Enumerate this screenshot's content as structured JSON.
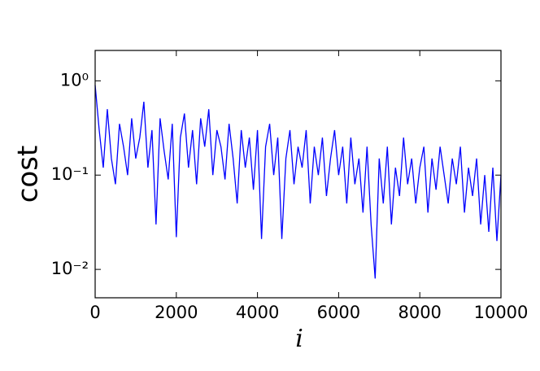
{
  "chart_data": {
    "type": "line",
    "xlabel": "i",
    "ylabel": "cost",
    "log_y": true,
    "xlim": [
      0,
      10000
    ],
    "xticks": [
      0,
      2000,
      4000,
      6000,
      8000,
      10000
    ],
    "ylim": [
      0.005,
      2.1
    ],
    "yticks": [
      {
        "value": 0.01,
        "label": "10⁻²"
      },
      {
        "value": 0.1,
        "label": "10⁻¹"
      },
      {
        "value": 1,
        "label": "10⁰"
      }
    ],
    "series": [
      {
        "color": "#0000ff",
        "x": [
          0,
          100,
          200,
          300,
          400,
          500,
          600,
          700,
          800,
          900,
          1000,
          1100,
          1200,
          1300,
          1400,
          1500,
          1600,
          1700,
          1800,
          1900,
          2000,
          2100,
          2200,
          2300,
          2400,
          2500,
          2600,
          2700,
          2800,
          2900,
          3000,
          3100,
          3200,
          3300,
          3400,
          3500,
          3600,
          3700,
          3800,
          3900,
          4000,
          4100,
          4200,
          4300,
          4400,
          4500,
          4600,
          4700,
          4800,
          4900,
          5000,
          5100,
          5200,
          5300,
          5400,
          5500,
          5600,
          5700,
          5800,
          5900,
          6000,
          6100,
          6200,
          6300,
          6400,
          6500,
          6600,
          6700,
          6800,
          6900,
          7000,
          7100,
          7200,
          7300,
          7400,
          7500,
          7600,
          7700,
          7800,
          7900,
          8000,
          8100,
          8200,
          8300,
          8400,
          8500,
          8600,
          8700,
          8800,
          8900,
          9000,
          9100,
          9200,
          9300,
          9400,
          9500,
          9600,
          9700,
          9800,
          9900,
          10000
        ],
        "values": [
          0.9,
          0.3,
          0.12,
          0.5,
          0.15,
          0.08,
          0.35,
          0.2,
          0.1,
          0.4,
          0.15,
          0.25,
          0.6,
          0.12,
          0.3,
          0.03,
          0.4,
          0.18,
          0.09,
          0.35,
          0.022,
          0.25,
          0.45,
          0.12,
          0.3,
          0.08,
          0.4,
          0.2,
          0.5,
          0.1,
          0.3,
          0.2,
          0.09,
          0.35,
          0.15,
          0.05,
          0.3,
          0.12,
          0.25,
          0.07,
          0.3,
          0.021,
          0.2,
          0.35,
          0.1,
          0.25,
          0.021,
          0.15,
          0.3,
          0.08,
          0.2,
          0.12,
          0.3,
          0.05,
          0.2,
          0.1,
          0.25,
          0.06,
          0.15,
          0.3,
          0.1,
          0.2,
          0.05,
          0.25,
          0.08,
          0.15,
          0.04,
          0.2,
          0.03,
          0.008,
          0.15,
          0.05,
          0.2,
          0.03,
          0.12,
          0.06,
          0.25,
          0.08,
          0.15,
          0.05,
          0.12,
          0.2,
          0.04,
          0.15,
          0.07,
          0.2,
          0.1,
          0.05,
          0.15,
          0.08,
          0.2,
          0.04,
          0.12,
          0.06,
          0.15,
          0.03,
          0.1,
          0.025,
          0.12,
          0.02,
          0.1
        ]
      }
    ]
  }
}
